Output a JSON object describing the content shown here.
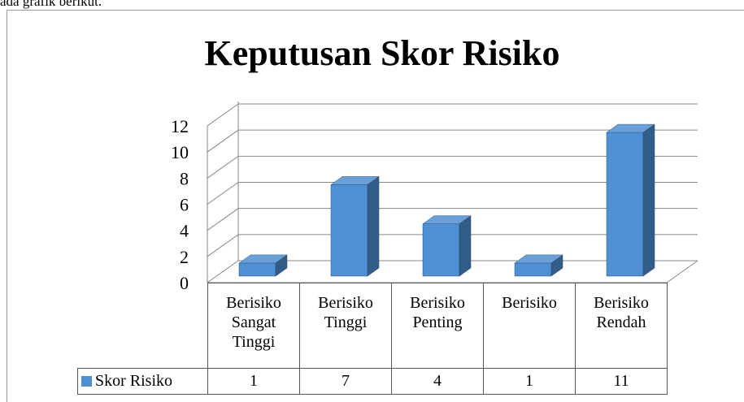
{
  "caption": "ada grafik berikut.",
  "chart_data": {
    "type": "bar3d",
    "title": "Keputusan Skor Risiko",
    "categories": [
      "Berisiko Sangat Tinggi",
      "Berisiko Tinggi",
      "Berisiko Penting",
      "Berisiko",
      "Berisiko Rendah"
    ],
    "series": [
      {
        "name": "Skor Risiko",
        "color": "#4f8fd3",
        "values": [
          1,
          7,
          4,
          1,
          11
        ]
      }
    ],
    "ylim": [
      0,
      12
    ],
    "yticks": [
      0,
      2,
      4,
      6,
      8,
      10,
      12
    ],
    "grid": true,
    "legend": "data-table"
  }
}
